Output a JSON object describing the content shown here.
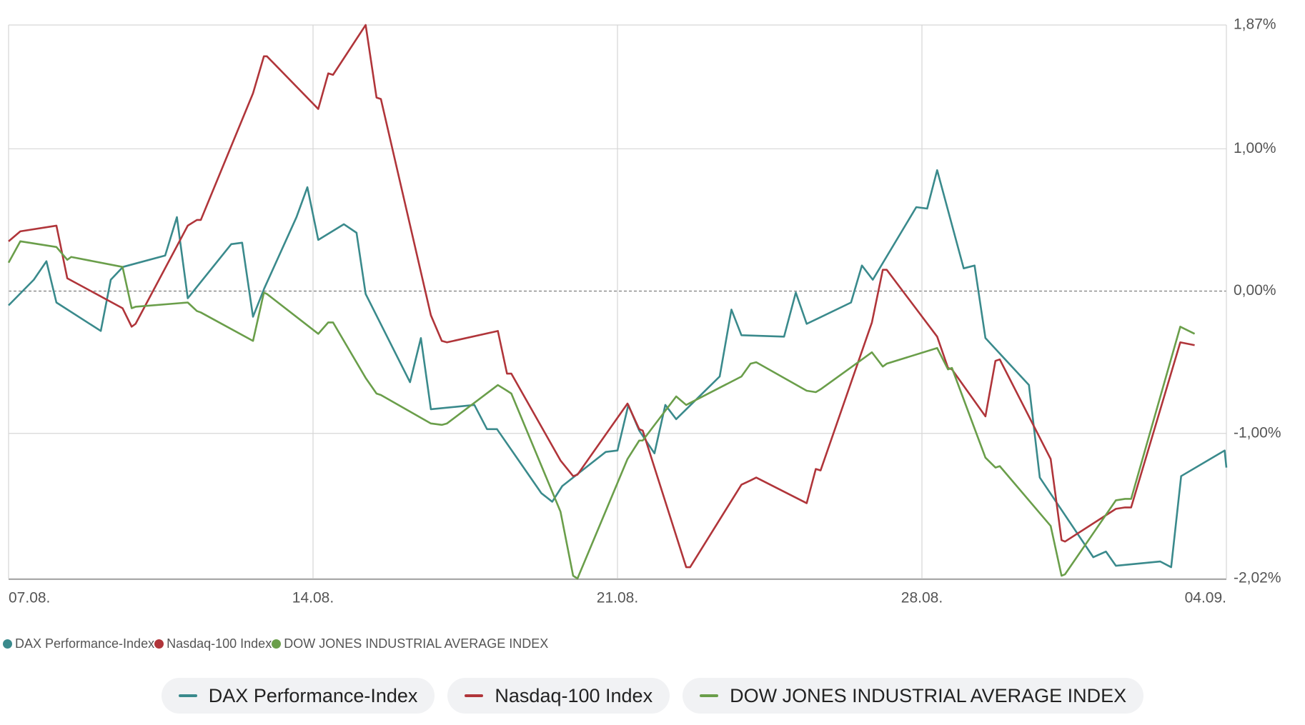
{
  "chart_data": {
    "type": "line",
    "xlim": [
      0,
      28
    ],
    "xticks": [
      {
        "value": 0,
        "label": "07.08."
      },
      {
        "value": 7,
        "label": "14.08."
      },
      {
        "value": 14,
        "label": "21.08."
      },
      {
        "value": 21,
        "label": "28.08."
      },
      {
        "value": 28,
        "label": "04.09."
      }
    ],
    "ylim": [
      -2.02,
      1.87
    ],
    "yticks": [
      {
        "value": 1.87,
        "label": "1,87%"
      },
      {
        "value": 1,
        "label": "1,00%"
      },
      {
        "value": 0,
        "label": "0,00%"
      },
      {
        "value": -1,
        "label": "-1,00%"
      },
      {
        "value": -2.02,
        "label": "-2,02%"
      }
    ],
    "grid": true,
    "legend": "bottom",
    "series": [
      {
        "name": "DAX Performance-Index",
        "color": "#3a8a8c",
        "x": [
          0,
          0.58,
          0.87,
          1.1,
          2.12,
          2.35,
          2.63,
          3.6,
          3.87,
          4.12,
          5.12,
          5.37,
          5.62,
          5.88,
          6.62,
          6.87,
          7.12,
          7.71,
          8.0,
          8.21,
          9.23,
          9.48,
          9.71,
          10.71,
          11.0,
          11.23,
          12.25,
          12.5,
          12.73,
          13.73,
          14.0,
          14.25,
          14.5,
          14.85,
          15.1,
          15.35,
          16.35,
          16.62,
          16.85,
          17.83,
          18.1,
          18.35,
          19.37,
          19.62,
          19.87,
          20.87,
          21.12,
          21.35,
          21.96,
          22.21,
          22.46,
          23.46,
          23.71,
          24.94,
          25.23,
          25.46,
          26.48,
          26.73,
          26.96,
          27.96,
          28.0
        ],
        "values": [
          -0.1,
          0.08,
          0.21,
          -0.08,
          -0.28,
          0.08,
          0.17,
          0.25,
          0.52,
          -0.05,
          0.33,
          0.34,
          -0.18,
          0.02,
          0.52,
          0.73,
          0.36,
          0.47,
          0.41,
          -0.02,
          -0.64,
          -0.33,
          -0.83,
          -0.8,
          -0.97,
          -0.97,
          -1.42,
          -1.48,
          -1.37,
          -1.13,
          -1.12,
          -0.8,
          -0.98,
          -1.14,
          -0.8,
          -0.9,
          -0.6,
          -0.13,
          -0.31,
          -0.32,
          -0.01,
          -0.23,
          -0.08,
          0.18,
          0.08,
          0.59,
          0.58,
          0.85,
          0.16,
          0.18,
          -0.33,
          -0.66,
          -1.31,
          -1.87,
          -1.83,
          -1.93,
          -1.9,
          -1.94,
          -1.3,
          -1.12,
          -1.24
        ]
      },
      {
        "name": "Nasdaq-100 Index",
        "color": "#b0353a",
        "x": [
          0,
          0.27,
          1.1,
          1.35,
          2.62,
          2.83,
          2.92,
          4.12,
          4.33,
          4.42,
          5.62,
          5.87,
          5.94,
          7.12,
          7.35,
          7.46,
          8.21,
          8.46,
          8.56,
          9.71,
          9.96,
          10.08,
          11.25,
          11.46,
          11.56,
          12.69,
          12.98,
          13.08,
          14.23,
          14.5,
          14.58,
          15.58,
          15.67,
          16.85,
          17.06,
          17.19,
          18.35,
          18.56,
          18.67,
          19.85,
          20.1,
          20.19,
          21.35,
          21.6,
          21.69,
          22.46,
          22.69,
          22.79,
          23.96,
          24.21,
          24.29,
          25.46,
          25.67,
          25.81,
          26.94,
          27.27
        ],
        "values": [
          0.35,
          0.42,
          0.46,
          0.09,
          -0.12,
          -0.25,
          -0.23,
          0.46,
          0.5,
          0.5,
          1.39,
          1.65,
          1.65,
          1.28,
          1.53,
          1.52,
          1.87,
          1.36,
          1.35,
          -0.17,
          -0.35,
          -0.36,
          -0.28,
          -0.58,
          -0.58,
          -1.19,
          -1.3,
          -1.29,
          -0.79,
          -0.97,
          -0.98,
          -1.94,
          -1.94,
          -1.36,
          -1.33,
          -1.31,
          -1.49,
          -1.25,
          -1.26,
          -0.22,
          0.15,
          0.15,
          -0.32,
          -0.54,
          -0.55,
          -0.88,
          -0.49,
          -0.48,
          -1.18,
          -1.75,
          -1.76,
          -1.53,
          -1.52,
          -1.52,
          -0.36,
          -0.38
        ]
      },
      {
        "name": "DOW JONES INDUSTRIAL AVERAGE INDEX",
        "color": "#6a9e4a",
        "x": [
          0,
          0.27,
          1.1,
          1.35,
          1.44,
          2.62,
          2.83,
          2.92,
          4.12,
          4.33,
          4.42,
          5.62,
          5.87,
          5.94,
          7.12,
          7.35,
          7.46,
          8.21,
          8.46,
          8.56,
          9.71,
          9.96,
          10.08,
          11.25,
          11.46,
          11.56,
          12.69,
          12.98,
          13.08,
          14.23,
          14.5,
          14.58,
          15.35,
          15.58,
          16.85,
          17.06,
          17.19,
          18.35,
          18.56,
          18.67,
          19.85,
          20.1,
          20.19,
          21.35,
          21.6,
          21.69,
          22.46,
          22.69,
          22.79,
          23.96,
          24.21,
          24.29,
          25.46,
          25.67,
          25.81,
          26.94,
          27.27
        ],
        "values": [
          0.2,
          0.35,
          0.31,
          0.22,
          0.24,
          0.17,
          -0.12,
          -0.11,
          -0.08,
          -0.14,
          -0.15,
          -0.35,
          -0.01,
          -0.02,
          -0.3,
          -0.22,
          -0.22,
          -0.61,
          -0.72,
          -0.73,
          -0.93,
          -0.94,
          -0.93,
          -0.66,
          -0.7,
          -0.72,
          -1.55,
          -2.0,
          -2.02,
          -1.18,
          -1.05,
          -1.05,
          -0.74,
          -0.8,
          -0.6,
          -0.51,
          -0.5,
          -0.7,
          -0.71,
          -0.69,
          -0.43,
          -0.53,
          -0.51,
          -0.4,
          -0.55,
          -0.54,
          -1.17,
          -1.24,
          -1.23,
          -1.65,
          -2.0,
          -1.99,
          -1.47,
          -1.46,
          -1.46,
          -0.25,
          -0.3
        ]
      }
    ]
  }
}
